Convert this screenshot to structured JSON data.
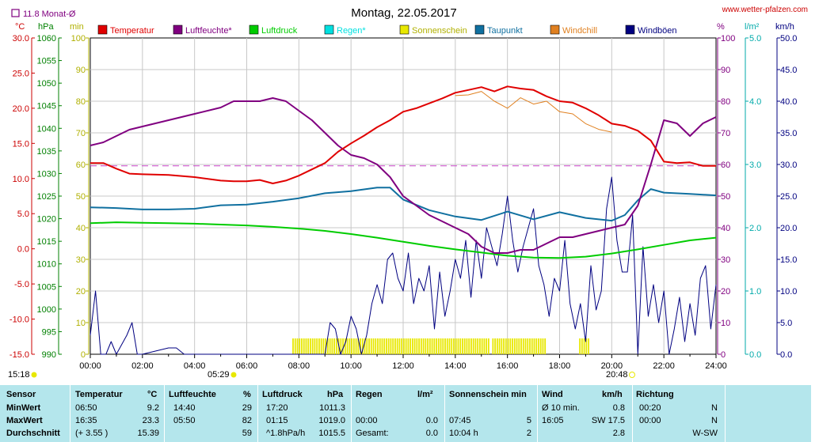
{
  "chart_data": {
    "type": "line",
    "title": "Montag, 22.05.2017",
    "source": "www.wetter-pfalzen.com",
    "month_avg_label": "11.8 Monat-Ø",
    "units": {
      "temp": "°C",
      "pressure": "hPa",
      "sun": "min",
      "humidity": "%",
      "rain": "l/m²",
      "wind": "km/h"
    },
    "axes": {
      "temp": {
        "ticks": [
          "30.0",
          "25.0",
          "20.0",
          "15.0",
          "10.0",
          "5.0",
          "0.0",
          "-5.0",
          "-10.0",
          "-15.0"
        ],
        "min": -15,
        "max": 30,
        "color": "#cc0000"
      },
      "pressure": {
        "ticks": [
          "1060",
          "1055",
          "1050",
          "1045",
          "1040",
          "1035",
          "1030",
          "1025",
          "1020",
          "1015",
          "1010",
          "1005",
          "1000",
          "995",
          "990"
        ],
        "min": 990,
        "max": 1060,
        "color": "#008000"
      },
      "sun": {
        "ticks": [
          "100",
          "90",
          "80",
          "70",
          "60",
          "50",
          "40",
          "30",
          "20",
          "10",
          "0"
        ],
        "min": 0,
        "max": 100,
        "color": "#b0b000"
      },
      "humidity": {
        "ticks": [
          "100",
          "90",
          "80",
          "70",
          "60",
          "50",
          "40",
          "30",
          "20",
          "10",
          "0"
        ],
        "min": 0,
        "max": 100,
        "color": "#800080"
      },
      "rain": {
        "ticks": [
          "5.0",
          "4.0",
          "3.0",
          "2.0",
          "1.0",
          "0.0"
        ],
        "min": 0,
        "max": 5,
        "color": "#00aaaa"
      },
      "wind": {
        "ticks": [
          "50.0",
          "45.0",
          "40.0",
          "35.0",
          "30.0",
          "25.0",
          "20.0",
          "15.0",
          "10.0",
          "5.0",
          "0.0"
        ],
        "min": 0,
        "max": 50,
        "color": "#000080"
      }
    },
    "x_ticks": [
      "00:00",
      "02:00",
      "04:00",
      "06:00",
      "08:00",
      "10:00",
      "12:00",
      "14:00",
      "16:00",
      "18:00",
      "20:00",
      "22:00",
      "24:00"
    ],
    "sunrise": "05:29",
    "sunset": "20:48",
    "daylight_start": "15:18",
    "legend": [
      {
        "name": "Temperatur",
        "color": "#e00000"
      },
      {
        "name": "Luftfeuchte*",
        "color": "#800080"
      },
      {
        "name": "Luftdruck",
        "color": "#00cc00"
      },
      {
        "name": "Regen*",
        "color": "#00e0e0"
      },
      {
        "name": "Sonnenschein",
        "color": "#e8e800"
      },
      {
        "name": "Taupunkt",
        "color": "#1070a0"
      },
      {
        "name": "Windchill",
        "color": "#e08020"
      },
      {
        "name": "Windböen",
        "color": "#000080"
      }
    ],
    "month_avg_temp": 11.8,
    "series": [
      {
        "name": "Temperatur",
        "axis": "temp",
        "x": [
          0,
          0.5,
          1,
          1.5,
          2,
          3,
          4,
          5,
          5.5,
          6,
          6.5,
          7,
          7.5,
          8,
          8.5,
          9,
          9.5,
          10,
          10.5,
          11,
          11.5,
          12,
          12.5,
          13,
          13.5,
          14,
          14.5,
          15,
          15.5,
          16,
          16.5,
          17,
          17.5,
          18,
          18.5,
          19,
          19.5,
          20,
          20.5,
          21,
          21.5,
          22,
          22.5,
          23,
          23.5,
          24
        ],
        "y": [
          12.2,
          12.2,
          11.4,
          10.7,
          10.6,
          10.5,
          10.2,
          9.7,
          9.6,
          9.6,
          9.8,
          9.3,
          9.7,
          10.4,
          11.3,
          12.2,
          13.8,
          15.0,
          16.1,
          17.3,
          18.3,
          19.5,
          20.0,
          20.7,
          21.4,
          22.2,
          22.6,
          23.0,
          22.4,
          23.1,
          22.8,
          22.6,
          21.7,
          21.0,
          20.8,
          20.0,
          19.0,
          17.8,
          17.5,
          16.8,
          15.4,
          12.4,
          12.2,
          12.3,
          11.8,
          11.8
        ]
      },
      {
        "name": "Luftfeuchte*",
        "axis": "humidity",
        "x": [
          0,
          0.5,
          1,
          1.5,
          2,
          3,
          4,
          5,
          5.5,
          6,
          6.5,
          7,
          7.5,
          8,
          8.5,
          9,
          9.5,
          10,
          10.5,
          11,
          11.5,
          12,
          12.5,
          13,
          13.5,
          14,
          14.5,
          15,
          15.5,
          16,
          16.5,
          17,
          17.5,
          18,
          18.5,
          19,
          19.5,
          20,
          20.5,
          21,
          21.5,
          22,
          22.5,
          23,
          23.5,
          24
        ],
        "y": [
          66,
          67,
          69,
          71,
          72,
          74,
          76,
          78,
          80,
          80,
          80,
          81,
          80,
          77,
          74,
          70,
          66,
          63,
          62,
          60,
          56,
          50,
          47,
          44,
          42,
          40,
          38,
          34,
          32,
          32,
          33,
          33,
          35,
          37,
          37,
          38,
          39,
          40,
          41,
          47,
          60,
          74,
          73,
          69,
          73,
          75
        ]
      },
      {
        "name": "Luftdruck",
        "axis": "pressure",
        "x": [
          0,
          1,
          2,
          3,
          4,
          5,
          6,
          7,
          8,
          9,
          10,
          11,
          12,
          13,
          14,
          15,
          16,
          17,
          18,
          19,
          20,
          21,
          22,
          23,
          24
        ],
        "y": [
          1019.0,
          1019.2,
          1019.1,
          1019.0,
          1018.9,
          1018.7,
          1018.5,
          1018.2,
          1017.8,
          1017.3,
          1016.6,
          1015.8,
          1014.9,
          1014.0,
          1013.2,
          1012.5,
          1011.8,
          1011.4,
          1011.3,
          1011.6,
          1012.3,
          1013.2,
          1014.2,
          1015.2,
          1015.8
        ]
      },
      {
        "name": "Taupunkt",
        "axis": "temp",
        "x": [
          0,
          1,
          2,
          3,
          4,
          5,
          6,
          7,
          8,
          9,
          10,
          11,
          11.5,
          12,
          13,
          14,
          15,
          16,
          17,
          18,
          19,
          20,
          20.5,
          21,
          21.5,
          22,
          23,
          24
        ],
        "y": [
          5.9,
          5.8,
          5.6,
          5.6,
          5.7,
          6.2,
          6.3,
          6.7,
          7.2,
          7.9,
          8.2,
          8.7,
          8.7,
          7.0,
          5.5,
          4.6,
          4.1,
          5.3,
          4.2,
          5.2,
          4.4,
          4.0,
          4.8,
          6.9,
          8.5,
          8.0,
          7.8,
          7.6
        ]
      },
      {
        "name": "Windchill",
        "axis": "temp",
        "x": [
          14,
          14.5,
          15,
          15.5,
          16,
          16.5,
          17,
          17.5,
          18,
          18.5,
          19,
          19.5,
          20
        ],
        "y": [
          21.8,
          21.9,
          22.4,
          21.0,
          20.0,
          21.5,
          20.6,
          21.0,
          19.5,
          19.2,
          17.8,
          17.0,
          16.6
        ]
      },
      {
        "name": "Windböen",
        "axis": "wind",
        "x": [
          0,
          0.2,
          0.4,
          0.6,
          0.8,
          1,
          1.4,
          1.6,
          1.8,
          2,
          3,
          3.3,
          3.6,
          8.5,
          9,
          9.2,
          9.4,
          9.6,
          9.8,
          10,
          10.2,
          10.4,
          10.6,
          10.8,
          11,
          11.2,
          11.4,
          11.6,
          11.8,
          12,
          12.2,
          12.4,
          12.6,
          12.8,
          13,
          13.2,
          13.4,
          13.6,
          13.8,
          14,
          14.2,
          14.4,
          14.6,
          14.8,
          15,
          15.2,
          15.4,
          15.6,
          15.8,
          16,
          16.2,
          16.4,
          16.6,
          16.8,
          17,
          17.2,
          17.4,
          17.6,
          17.8,
          18,
          18.2,
          18.4,
          18.6,
          18.8,
          19,
          19.2,
          19.4,
          19.6,
          19.8,
          20,
          20.2,
          20.4,
          20.6,
          20.8,
          21,
          21.2,
          21.4,
          21.6,
          21.8,
          22,
          22.2,
          22.4,
          22.6,
          22.8,
          23,
          23.2,
          23.4,
          23.6,
          23.8,
          24
        ],
        "y": [
          3,
          10,
          0,
          0,
          2,
          0,
          3,
          5,
          0,
          0,
          1,
          1,
          0,
          0,
          0,
          5,
          4,
          0,
          2,
          6,
          4,
          0,
          3,
          8,
          11,
          8,
          15,
          16,
          12,
          10,
          16,
          8,
          12,
          10,
          14,
          4,
          13,
          6,
          10,
          15,
          12,
          18,
          9,
          18,
          12,
          20,
          17,
          14,
          19,
          25,
          18,
          13,
          17,
          20,
          23,
          14,
          11,
          6,
          12,
          10,
          18,
          8,
          4,
          8,
          2,
          14,
          7,
          10,
          23,
          28,
          18,
          13,
          13,
          22,
          0,
          17,
          6,
          11,
          5,
          10,
          0,
          4,
          9,
          2,
          8,
          3,
          12,
          14,
          4,
          11
        ]
      }
    ],
    "sunshine_segments": [
      [
        "07:45",
        "09:50"
      ],
      [
        "09:50",
        "15:20"
      ],
      [
        "15:25",
        "17:25"
      ],
      [
        "18:45",
        "19:05"
      ]
    ]
  },
  "table": {
    "headers": [
      "Sensor",
      "Temperatur",
      "°C",
      "Luftfeuchte",
      "%",
      "Luftdruck",
      "hPa",
      "Regen",
      "l/m²",
      "Sonnenschein min",
      "Wind",
      "km/h",
      "Richtung"
    ],
    "rows": [
      {
        "label": "MinWert",
        "temp_time": "06:50",
        "temp_val": "9.2",
        "hum_time": "14:40",
        "hum_val": "29",
        "press_time": "17:20",
        "press_val": "1011.3",
        "rain_time": "",
        "rain_val": "",
        "sun_time": "",
        "sun_val": "",
        "wind_time": "Ø 10 min.",
        "wind_val": "0.8",
        "dir_time": "00:20",
        "dir_val": "N"
      },
      {
        "label": "MaxWert",
        "temp_time": "16:35",
        "temp_val": "23.3",
        "hum_time": "05:50",
        "hum_val": "82",
        "press_time": "01:15",
        "press_val": "1019.0",
        "rain_time": "00:00",
        "rain_val": "0.0",
        "sun_time": "07:45",
        "sun_val": "5",
        "wind_time": "16:05",
        "wind_val": "SW 17.5",
        "dir_time": "00:00",
        "dir_val": "N"
      },
      {
        "label": "Durchschnitt",
        "temp_time": "(+ 3.55 )",
        "temp_val": "15.39",
        "hum_time": "",
        "hum_val": "59",
        "press_time": "^1.8hPa/h",
        "press_val": "1015.5",
        "rain_time": "Gesamt:",
        "rain_val": "0.0",
        "sun_time": "10:04 h",
        "sun_val": "2",
        "wind_time": "",
        "wind_val": "2.8",
        "dir_time": "",
        "dir_val": "W-SW"
      }
    ]
  }
}
